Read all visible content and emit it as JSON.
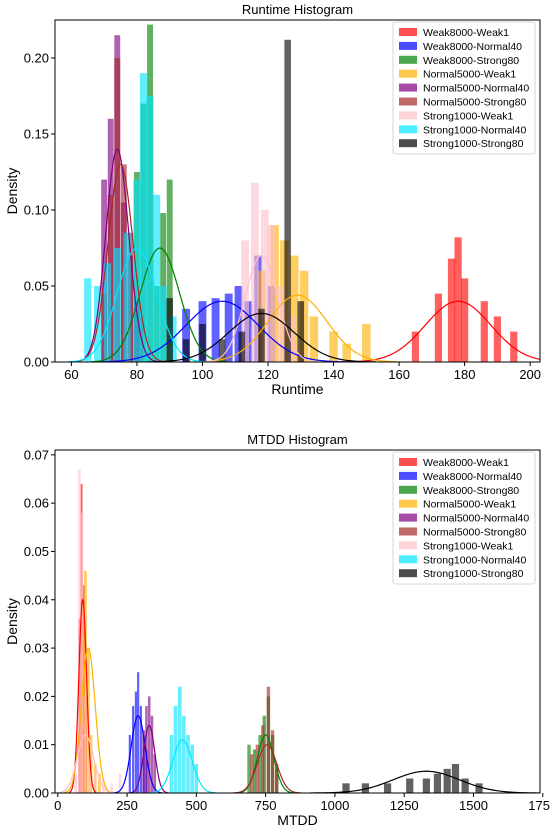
{
  "colors": {
    "Weak8000-Weak1": "#ff0000",
    "Weak8000-Normal40": "#0000ff",
    "Weak8000-Strong80": "#008000",
    "Normal5000-Weak1": "#ffb000",
    "Normal5000-Normal40": "#800080",
    "Normal5000-Strong80": "#a52a2a",
    "Strong1000-Weak1": "#ffc0cb",
    "Strong1000-Normal40": "#00e5ff",
    "Strong1000-Strong80": "#000000"
  },
  "chart_data": [
    {
      "type": "histogram",
      "title": "Runtime Histogram",
      "xlabel": "Runtime",
      "ylabel": "Density",
      "xlim": [
        55,
        203
      ],
      "ylim": [
        0,
        0.225
      ],
      "xticks": [
        60,
        80,
        100,
        120,
        140,
        160,
        180,
        200
      ],
      "yticks": [
        0.0,
        0.05,
        0.1,
        0.15,
        0.2
      ],
      "ytick_labels": [
        "0.00",
        "0.05",
        "0.10",
        "0.15",
        "0.20"
      ],
      "grid": false,
      "legend": "top-right",
      "series": [
        {
          "name": "Weak8000-Weak1",
          "bins": [
            [
              165,
              0.02
            ],
            [
              172,
              0.045
            ],
            [
              176,
              0.068
            ],
            [
              178,
              0.082
            ],
            [
              180,
              0.055
            ],
            [
              186,
              0.04
            ],
            [
              190,
              0.03
            ],
            [
              195,
              0.02
            ]
          ],
          "width": 2.2,
          "kde": {
            "mean": 178,
            "sd": 10,
            "peak": 0.04
          }
        },
        {
          "name": "Weak8000-Normal40",
          "bins": [
            [
              95,
              0.035
            ],
            [
              100,
              0.04
            ],
            [
              104,
              0.042
            ],
            [
              108,
              0.045
            ],
            [
              111,
              0.05
            ],
            [
              114,
              0.04
            ],
            [
              117,
              0.07
            ],
            [
              121,
              0.05
            ]
          ],
          "width": 2.4,
          "kde": {
            "mean": 106,
            "sd": 11,
            "peak": 0.04
          }
        },
        {
          "name": "Weak8000-Strong80",
          "bins": [
            [
              80,
              0.125
            ],
            [
              82,
              0.17
            ],
            [
              84,
              0.222
            ],
            [
              86,
              0.05
            ],
            [
              88,
              0.098
            ],
            [
              90,
              0.12
            ]
          ],
          "width": 1.8,
          "kde": {
            "mean": 87,
            "sd": 6,
            "peak": 0.075
          }
        },
        {
          "name": "Normal5000-Weak1",
          "bins": [
            [
              118,
              0.06
            ],
            [
              122,
              0.09
            ],
            [
              125,
              0.08
            ],
            [
              128,
              0.07
            ],
            [
              131,
              0.06
            ],
            [
              134,
              0.03
            ],
            [
              140,
              0.02
            ],
            [
              144,
              0.012
            ],
            [
              150,
              0.025
            ]
          ],
          "width": 2.6,
          "kde": {
            "mean": 129,
            "sd": 9,
            "peak": 0.044
          }
        },
        {
          "name": "Normal5000-Normal40",
          "bins": [
            [
              70,
              0.12
            ],
            [
              72,
              0.16
            ],
            [
              74,
              0.215
            ],
            [
              76,
              0.105
            ],
            [
              78,
              0.07
            ],
            [
              80,
              0.04
            ]
          ],
          "width": 1.8,
          "kde": {
            "mean": 74,
            "sd": 3.5,
            "peak": 0.14
          }
        },
        {
          "name": "Normal5000-Strong80",
          "bins": [
            [
              70,
              0.045
            ],
            [
              72,
              0.11
            ],
            [
              74,
              0.2
            ],
            [
              76,
              0.13
            ],
            [
              78,
              0.085
            ],
            [
              81,
              0.03
            ]
          ],
          "width": 1.8,
          "kde": {
            "mean": 75,
            "sd": 3.8,
            "peak": 0.13
          }
        },
        {
          "name": "Strong1000-Weak1",
          "bins": [
            [
              113,
              0.08
            ],
            [
              116,
              0.118
            ],
            [
              119,
              0.1
            ],
            [
              121,
              0.09
            ],
            [
              124,
              0.05
            ],
            [
              127,
              0.03
            ]
          ],
          "width": 2.4,
          "kde": {
            "mean": 118,
            "sd": 5,
            "peak": 0.07
          }
        },
        {
          "name": "Strong1000-Normal40",
          "bins": [
            [
              65,
              0.055
            ],
            [
              68,
              0.05
            ],
            [
              71,
              0.065
            ],
            [
              74,
              0.075
            ],
            [
              77,
              0.085
            ],
            [
              80,
              0.12
            ],
            [
              82,
              0.19
            ],
            [
              84,
              0.175
            ],
            [
              86,
              0.11
            ],
            [
              88,
              0.05
            ],
            [
              91,
              0.03
            ]
          ],
          "width": 2.2,
          "kde": {
            "mean": 80,
            "sd": 6,
            "peak": 0.075
          }
        },
        {
          "name": "Strong1000-Strong80",
          "bins": [
            [
              90,
              0.042
            ],
            [
              95,
              0.015
            ],
            [
              100,
              0.025
            ],
            [
              106,
              0.015
            ],
            [
              112,
              0.02
            ],
            [
              118,
              0.035
            ],
            [
              126,
              0.212
            ],
            [
              130,
              0.04
            ]
          ],
          "width": 2.0,
          "kde": {
            "mean": 118,
            "sd": 10,
            "peak": 0.032
          }
        }
      ]
    },
    {
      "type": "histogram",
      "title": "MTDD Histogram",
      "xlabel": "MTDD",
      "ylabel": "Density",
      "xlim": [
        -10,
        1740
      ],
      "ylim": [
        0,
        0.071
      ],
      "xticks": [
        0,
        250,
        500,
        750,
        1000,
        1250,
        1500,
        1750
      ],
      "yticks": [
        0.0,
        0.01,
        0.02,
        0.03,
        0.04,
        0.05,
        0.06,
        0.07
      ],
      "ytick_labels": [
        "0.00",
        "0.01",
        "0.02",
        "0.03",
        "0.04",
        "0.05",
        "0.06",
        "0.07"
      ],
      "grid": false,
      "legend": "top-right",
      "series": [
        {
          "name": "Weak8000-Weak1",
          "bins": [
            [
              78,
              0.036
            ],
            [
              86,
              0.064
            ],
            [
              94,
              0.043
            ],
            [
              102,
              0.02
            ]
          ],
          "width": 7,
          "kde": {
            "mean": 90,
            "sd": 14,
            "peak": 0.04
          }
        },
        {
          "name": "Weak8000-Normal40",
          "bins": [
            [
              260,
              0.012
            ],
            [
              272,
              0.018
            ],
            [
              282,
              0.021
            ],
            [
              290,
              0.025
            ],
            [
              300,
              0.018
            ],
            [
              310,
              0.012
            ],
            [
              320,
              0.009
            ]
          ],
          "width": 8,
          "kde": {
            "mean": 290,
            "sd": 25,
            "peak": 0.016
          }
        },
        {
          "name": "Weak8000-Strong80",
          "bins": [
            [
              690,
              0.01
            ],
            [
              710,
              0.009
            ],
            [
              730,
              0.012
            ],
            [
              745,
              0.016
            ],
            [
              760,
              0.02
            ],
            [
              775,
              0.012
            ],
            [
              790,
              0.005
            ]
          ],
          "width": 12,
          "kde": {
            "mean": 750,
            "sd": 30,
            "peak": 0.012
          }
        },
        {
          "name": "Normal5000-Weak1",
          "bins": [
            [
              90,
              0.04
            ],
            [
              100,
              0.046
            ],
            [
              110,
              0.03
            ],
            [
              120,
              0.012
            ],
            [
              135,
              0.006
            ],
            [
              150,
              0.004
            ]
          ],
          "width": 10,
          "kde": {
            "mean": 110,
            "sd": 25,
            "peak": 0.03
          }
        },
        {
          "name": "Normal5000-Normal40",
          "bins": [
            [
              310,
              0.013
            ],
            [
              320,
              0.018
            ],
            [
              330,
              0.02
            ],
            [
              340,
              0.016
            ],
            [
              350,
              0.008
            ]
          ],
          "width": 9,
          "kde": {
            "mean": 330,
            "sd": 20,
            "peak": 0.014
          }
        },
        {
          "name": "Normal5000-Strong80",
          "bins": [
            [
              700,
              0.008
            ],
            [
              720,
              0.01
            ],
            [
              740,
              0.014
            ],
            [
              760,
              0.022
            ],
            [
              775,
              0.013
            ],
            [
              790,
              0.006
            ]
          ],
          "width": 12,
          "kde": {
            "mean": 755,
            "sd": 35,
            "peak": 0.01
          }
        },
        {
          "name": "Strong1000-Weak1",
          "bins": [
            [
              65,
              0.004
            ],
            [
              78,
              0.067
            ],
            [
              88,
              0.058
            ],
            [
              100,
              0.02
            ],
            [
              115,
              0.008
            ],
            [
              135,
              0.004
            ],
            [
              165,
              0.003
            ],
            [
              195,
              0.002
            ],
            [
              225,
              0.004
            ]
          ],
          "width": 9,
          "kde": {
            "mean": 100,
            "sd": 30,
            "peak": 0.012
          }
        },
        {
          "name": "Strong1000-Normal40",
          "bins": [
            [
              410,
              0.012
            ],
            [
              425,
              0.018
            ],
            [
              440,
              0.022
            ],
            [
              455,
              0.016
            ],
            [
              470,
              0.012
            ],
            [
              485,
              0.01
            ],
            [
              500,
              0.006
            ]
          ],
          "width": 13,
          "kde": {
            "mean": 450,
            "sd": 35,
            "peak": 0.011
          }
        },
        {
          "name": "Strong1000-Strong80",
          "bins": [
            [
              1040,
              0.002
            ],
            [
              1110,
              0.002
            ],
            [
              1190,
              0.002
            ],
            [
              1270,
              0.003
            ],
            [
              1330,
              0.003
            ],
            [
              1370,
              0.004
            ],
            [
              1405,
              0.005
            ],
            [
              1435,
              0.006
            ],
            [
              1470,
              0.003
            ],
            [
              1520,
              0.002
            ]
          ],
          "width": 26,
          "kde": {
            "mean": 1330,
            "sd": 120,
            "peak": 0.0045
          }
        }
      ]
    }
  ]
}
